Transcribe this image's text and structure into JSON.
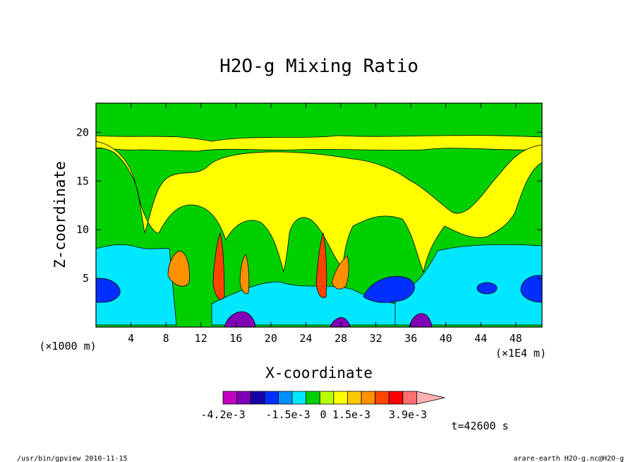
{
  "chart_data": {
    "type": "heatmap",
    "title": "H2O-g Mixing Ratio",
    "xlabel": "X-coordinate",
    "ylabel": "Z-coordinate",
    "x_unit_note": "(×1E4 m)",
    "y_unit_note": "(×1000 m)",
    "xlim": [
      0,
      51
    ],
    "ylim": [
      0,
      23
    ],
    "x_ticks": [
      "4",
      "8",
      "12",
      "16",
      "20",
      "24",
      "28",
      "32",
      "36",
      "40",
      "44",
      "48"
    ],
    "x_tick_values": [
      4,
      8,
      12,
      16,
      20,
      24,
      28,
      32,
      36,
      40,
      44,
      48
    ],
    "y_ticks": [
      "5",
      "10",
      "15",
      "20"
    ],
    "y_tick_values": [
      5,
      10,
      15,
      20
    ],
    "colorbar": {
      "colors": [
        "#c000c0",
        "#8000b8",
        "#1800a8",
        "#0030ff",
        "#0090ff",
        "#00e8ff",
        "#00d000",
        "#b8ff00",
        "#ffff00",
        "#ffc800",
        "#ff9000",
        "#ff4400",
        "#ff0000",
        "#ff7070",
        "#ffb0b0"
      ],
      "labels": [
        "-4.2e-3",
        "-1.5e-3",
        "0",
        "1.5e-3",
        "3.9e-3"
      ]
    },
    "bands": [
      {
        "zmin": 0,
        "zmax": 1.5,
        "color": "#00d000"
      },
      {
        "zmin": 1.5,
        "zmax": 4.5,
        "color": "#00e8ff"
      },
      {
        "zmin": 4.5,
        "zmax": 8,
        "color": "#00e8ff"
      },
      {
        "zmin": 8,
        "zmax": 18,
        "color": "#00d000"
      },
      {
        "zmin": 18,
        "zmax": 19.5,
        "color": "#ffff00"
      },
      {
        "zmin": 19.5,
        "zmax": 23,
        "color": "#00d000"
      }
    ]
  },
  "time_label": "t=42600 s",
  "footer": {
    "left": "/usr/bin/gpview  2010-11-15",
    "right": "arare-earth_H2O-g.nc@H2O-g"
  }
}
